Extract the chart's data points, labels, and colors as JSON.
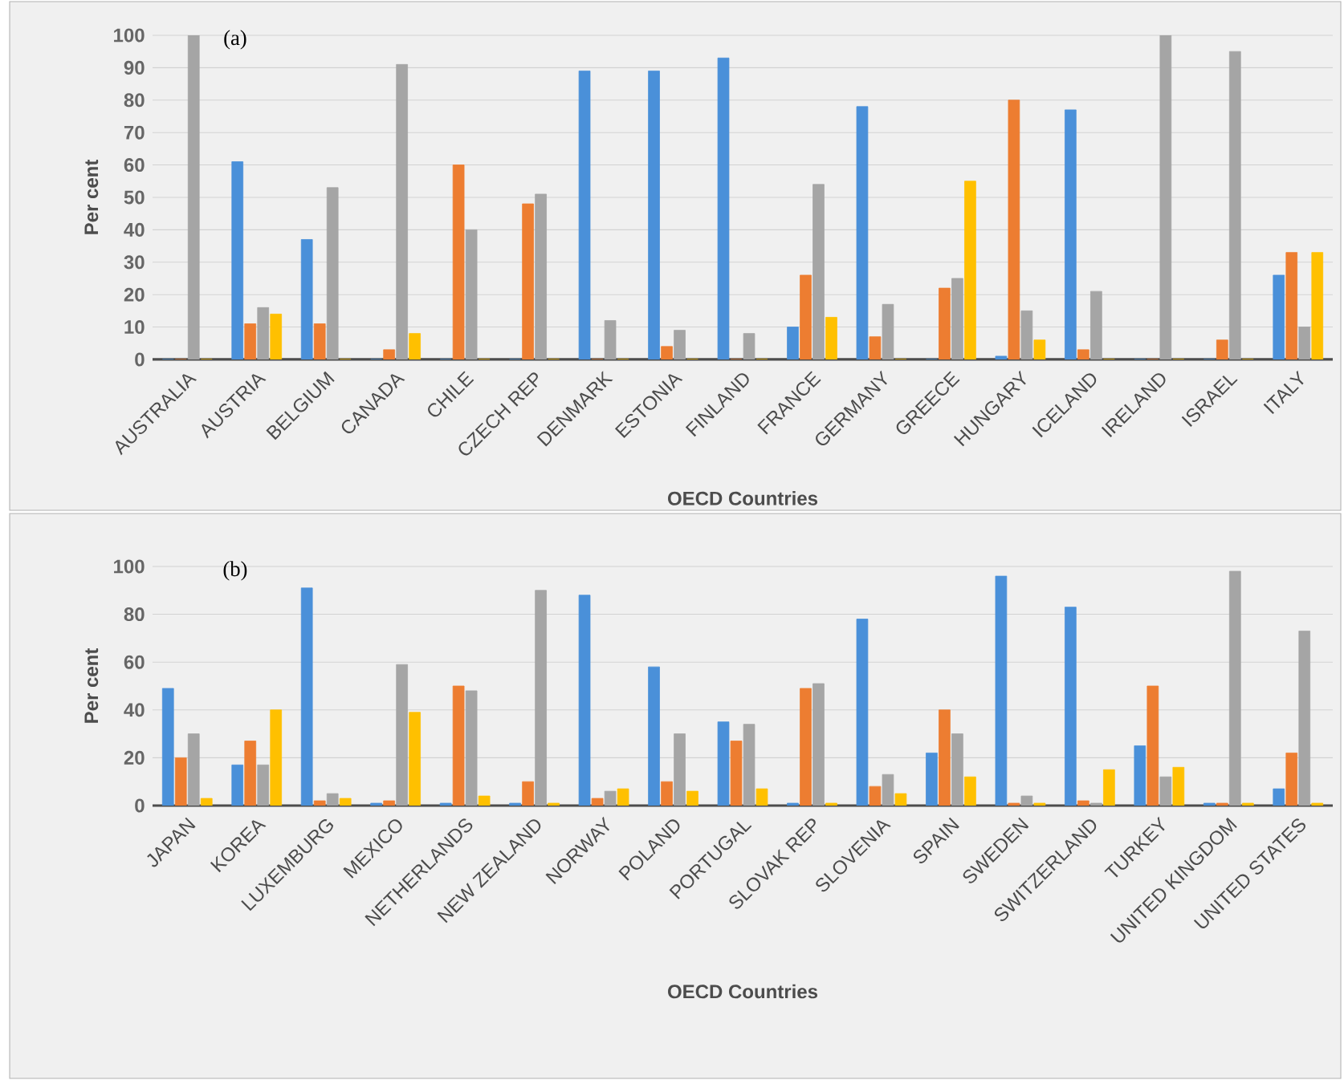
{
  "chart_data": [
    {
      "type": "bar",
      "title": "(a)",
      "xlabel": "OECD Countries",
      "ylabel": "Per cent",
      "grid": "y",
      "categories": [
        "AUSTRALIA",
        "AUSTRIA",
        "BELGIUM",
        "CANADA",
        "CHILE",
        "CZECH REP",
        "DENMARK",
        "ESTONIA",
        "FINLAND",
        "FRANCE",
        "GERMANY",
        "GREECE",
        "HUNGARY",
        "ICELAND",
        "IRELAND",
        "ISRAEL",
        "ITALY"
      ],
      "ylim": [
        0,
        100
      ],
      "yticks": [
        0,
        10,
        20,
        30,
        40,
        50,
        60,
        70,
        80,
        90,
        100
      ],
      "series": [
        {
          "color": "#4a90d9",
          "values": [
            0,
            61,
            37,
            0,
            0,
            0,
            89,
            89,
            93,
            10,
            78,
            0,
            1,
            77,
            0,
            0,
            26
          ]
        },
        {
          "color": "#ed7d31",
          "values": [
            0,
            11,
            11,
            3,
            60,
            48,
            0,
            4,
            0,
            26,
            7,
            22,
            80,
            3,
            0,
            6,
            33
          ]
        },
        {
          "color": "#a5a5a5",
          "values": [
            100,
            16,
            53,
            91,
            40,
            51,
            12,
            9,
            8,
            54,
            17,
            25,
            15,
            21,
            100,
            95,
            10
          ]
        },
        {
          "color": "#ffc000",
          "values": [
            0,
            14,
            0,
            8,
            0,
            0,
            0,
            0,
            0,
            13,
            0,
            55,
            6,
            0,
            0,
            0,
            33
          ]
        }
      ]
    },
    {
      "type": "bar",
      "title": "(b)",
      "xlabel": "OECD Countries",
      "ylabel": "Per cent",
      "grid": "y",
      "categories": [
        "JAPAN",
        "KOREA",
        "LUXEMBURG",
        "MEXICO",
        "NETHERLANDS",
        "NEW ZEALAND",
        "NORWAY",
        "POLAND",
        "PORTUGAL",
        "SLOVAK REP",
        "SLOVENIA",
        "SPAIN",
        "SWEDEN",
        "SWITZERLAND",
        "TURKEY",
        "UNITED KINGDOM",
        "UNITED STATES"
      ],
      "ylim": [
        0,
        100
      ],
      "yticks": [
        0,
        20,
        40,
        60,
        80,
        100
      ],
      "series": [
        {
          "color": "#4a90d9",
          "values": [
            49,
            17,
            91,
            1,
            1,
            1,
            88,
            58,
            35,
            1,
            78,
            22,
            96,
            83,
            25,
            1,
            7
          ]
        },
        {
          "color": "#ed7d31",
          "values": [
            20,
            27,
            2,
            2,
            50,
            10,
            3,
            10,
            27,
            49,
            8,
            40,
            1,
            2,
            50,
            1,
            22
          ]
        },
        {
          "color": "#a5a5a5",
          "values": [
            30,
            17,
            5,
            59,
            48,
            90,
            6,
            30,
            34,
            51,
            13,
            30,
            4,
            1,
            12,
            98,
            73
          ]
        },
        {
          "color": "#ffc000",
          "values": [
            3,
            40,
            3,
            39,
            4,
            1,
            7,
            6,
            7,
            1,
            5,
            12,
            1,
            15,
            16,
            1,
            1
          ]
        }
      ]
    }
  ]
}
